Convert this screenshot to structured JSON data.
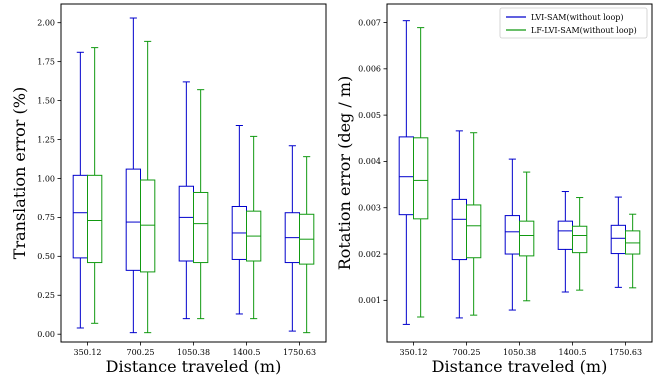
{
  "chart_data": [
    {
      "type": "box",
      "xlabel": "Distance traveled (m)",
      "ylabel": "Translation error (%)",
      "categories": [
        "350.12",
        "700.25",
        "1050.38",
        "1400.5",
        "1750.63"
      ],
      "ylim": [
        -0.05,
        2.12
      ],
      "yticks": [
        0.0,
        0.25,
        0.5,
        0.75,
        1.0,
        1.25,
        1.5,
        1.75,
        2.0
      ],
      "ytick_labels": [
        "0.00",
        "0.25",
        "0.50",
        "0.75",
        "1.00",
        "1.25",
        "1.50",
        "1.75",
        "2.00"
      ],
      "grid": false,
      "series": [
        {
          "name": "LVI-SAM(without loop)",
          "color": "#0000cc",
          "boxes": [
            {
              "min": 0.04,
              "q1": 0.49,
              "median": 0.78,
              "q3": 1.02,
              "max": 1.81
            },
            {
              "min": 0.01,
              "q1": 0.41,
              "median": 0.72,
              "q3": 1.06,
              "max": 2.03
            },
            {
              "min": 0.1,
              "q1": 0.47,
              "median": 0.75,
              "q3": 0.95,
              "max": 1.62
            },
            {
              "min": 0.13,
              "q1": 0.48,
              "median": 0.65,
              "q3": 0.82,
              "max": 1.34
            },
            {
              "min": 0.02,
              "q1": 0.46,
              "median": 0.62,
              "q3": 0.78,
              "max": 1.21
            }
          ]
        },
        {
          "name": "LF-LVI-SAM(without loop)",
          "color": "#119911",
          "boxes": [
            {
              "min": 0.07,
              "q1": 0.46,
              "median": 0.73,
              "q3": 1.02,
              "max": 1.84
            },
            {
              "min": 0.01,
              "q1": 0.4,
              "median": 0.7,
              "q3": 0.99,
              "max": 1.88
            },
            {
              "min": 0.1,
              "q1": 0.46,
              "median": 0.71,
              "q3": 0.91,
              "max": 1.57
            },
            {
              "min": 0.1,
              "q1": 0.47,
              "median": 0.63,
              "q3": 0.79,
              "max": 1.27
            },
            {
              "min": 0.01,
              "q1": 0.45,
              "median": 0.61,
              "q3": 0.77,
              "max": 1.14
            }
          ]
        }
      ]
    },
    {
      "type": "box",
      "xlabel": "Distance traveled (m)",
      "ylabel": "Rotation error (deg / m)",
      "categories": [
        "350.12",
        "700.25",
        "1050.38",
        "1400.5",
        "1750.63"
      ],
      "ylim": [
        0.0001,
        0.0074
      ],
      "yticks": [
        0.001,
        0.002,
        0.003,
        0.004,
        0.005,
        0.006,
        0.007
      ],
      "ytick_labels": [
        "0.001",
        "0.002",
        "0.003",
        "0.004",
        "0.005",
        "0.006",
        "0.007"
      ],
      "grid": false,
      "legend_position": "top-right",
      "series": [
        {
          "name": "LVI-SAM(without loop)",
          "color": "#0000cc",
          "boxes": [
            {
              "min": 0.00048,
              "q1": 0.00285,
              "median": 0.00367,
              "q3": 0.00453,
              "max": 0.00704
            },
            {
              "min": 0.00062,
              "q1": 0.00188,
              "median": 0.00275,
              "q3": 0.00318,
              "max": 0.00466
            },
            {
              "min": 0.00079,
              "q1": 0.002,
              "median": 0.00248,
              "q3": 0.00283,
              "max": 0.00405
            },
            {
              "min": 0.00118,
              "q1": 0.0021,
              "median": 0.0025,
              "q3": 0.00271,
              "max": 0.00335
            },
            {
              "min": 0.00128,
              "q1": 0.00201,
              "median": 0.00234,
              "q3": 0.00262,
              "max": 0.00323
            }
          ]
        },
        {
          "name": "LF-LVI-SAM(without loop)",
          "color": "#119911",
          "boxes": [
            {
              "min": 0.00064,
              "q1": 0.00276,
              "median": 0.00359,
              "q3": 0.00451,
              "max": 0.00689
            },
            {
              "min": 0.00068,
              "q1": 0.00192,
              "median": 0.00261,
              "q3": 0.00306,
              "max": 0.00462
            },
            {
              "min": 0.00099,
              "q1": 0.00196,
              "median": 0.0024,
              "q3": 0.00271,
              "max": 0.00377
            },
            {
              "min": 0.00122,
              "q1": 0.00203,
              "median": 0.0024,
              "q3": 0.0026,
              "max": 0.00322
            },
            {
              "min": 0.00127,
              "q1": 0.002,
              "median": 0.00224,
              "q3": 0.0025,
              "max": 0.00286
            }
          ]
        }
      ]
    }
  ]
}
